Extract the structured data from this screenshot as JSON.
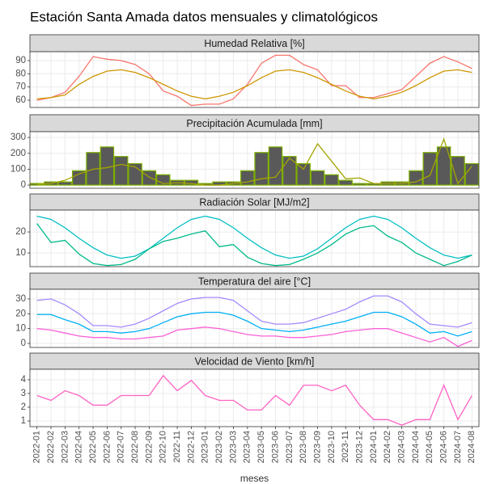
{
  "title": "Estación Santa Amada datos mensuales y climatológicos",
  "chart_data": [
    {
      "type": "line",
      "title": "Humedad Relativa [%]",
      "ylim": [
        54.5,
        96.7
      ],
      "yticks": [
        60,
        70,
        80,
        90
      ],
      "grid": true,
      "series": [
        {
          "color": "#F8766D",
          "values": [
            60,
            62,
            66,
            78,
            93,
            91,
            90,
            87,
            80,
            67,
            63,
            56,
            57,
            57,
            61,
            72,
            88,
            94,
            94,
            87,
            83,
            71,
            71,
            62,
            62,
            65,
            68,
            78,
            88,
            93,
            89,
            84
          ]
        },
        {
          "color": "#CD9600",
          "values": [
            61,
            62,
            64,
            72,
            78,
            82,
            83,
            81,
            77,
            72,
            67,
            63,
            61,
            63,
            66,
            71,
            77,
            82,
            83,
            81,
            77,
            72,
            67,
            63,
            61,
            63,
            66,
            71,
            77,
            82,
            83,
            81
          ]
        }
      ]
    },
    {
      "type": "bar",
      "title": "Precipitación Acumulada [mm]",
      "ylim": [
        -20,
        336
      ],
      "yticks": [
        0,
        100,
        200,
        300
      ],
      "grid": true,
      "series": [
        {
          "type": "bar",
          "color": "#595959",
          "stroke": "#7CAE00",
          "values": [
            10,
            20,
            20,
            90,
            205,
            240,
            180,
            135,
            90,
            65,
            30,
            30,
            10,
            20,
            20,
            90,
            205,
            240,
            180,
            135,
            90,
            65,
            30,
            10,
            10,
            20,
            20,
            90,
            205,
            240,
            180,
            135
          ]
        },
        {
          "type": "line",
          "color": "#A3A500",
          "values": [
            5,
            10,
            30,
            70,
            100,
            110,
            130,
            115,
            50,
            10,
            15,
            10,
            0,
            0,
            10,
            20,
            40,
            50,
            170,
            100,
            260,
            150,
            40,
            45,
            10,
            10,
            10,
            20,
            60,
            290,
            10,
            120
          ]
        }
      ]
    },
    {
      "type": "line",
      "title": "Radiación Solar [MJ/m2]",
      "ylim": [
        3.5,
        30.4
      ],
      "yticks": [
        10,
        20
      ],
      "grid": true,
      "series": [
        {
          "color": "#00BFC4",
          "values": [
            27.5,
            26,
            22,
            17,
            12.5,
            9,
            7.5,
            8.5,
            12,
            17,
            22,
            26,
            27.5,
            26,
            22,
            17,
            12.5,
            9,
            7.5,
            8.5,
            12,
            17,
            22,
            26,
            27.5,
            26,
            22,
            17,
            12.5,
            9,
            7.5,
            9
          ]
        },
        {
          "color": "#00BA8A",
          "values": [
            24,
            15,
            16,
            9.5,
            5,
            4,
            4.5,
            7,
            12,
            15.5,
            17,
            19,
            20.5,
            13,
            14,
            8,
            5,
            4,
            4.5,
            7,
            10,
            14,
            19,
            22,
            23,
            18,
            15,
            10,
            7,
            4,
            6,
            9
          ]
        }
      ]
    },
    {
      "type": "line",
      "title": "Temperatura del aire [°C]",
      "ylim": [
        -2.7,
        36.5
      ],
      "yticks": [
        0,
        10,
        20,
        30
      ],
      "grid": true,
      "series": [
        {
          "color": "#A58AFF",
          "values": [
            29,
            30,
            26,
            20,
            12,
            12,
            11,
            13,
            17,
            22,
            27,
            30,
            31,
            31,
            29,
            22,
            15,
            13,
            13,
            14,
            17,
            20,
            23,
            28,
            32,
            32,
            28,
            20,
            13,
            12,
            11,
            14
          ]
        },
        {
          "color": "#00B0F6",
          "values": [
            19.5,
            19.5,
            16,
            13,
            8,
            8,
            7,
            8,
            10,
            14,
            18,
            20,
            21,
            21,
            19,
            15,
            10,
            9,
            8,
            9,
            11,
            13,
            15,
            18,
            21,
            21,
            18,
            13,
            7,
            8,
            5,
            8
          ]
        },
        {
          "color": "#FB61D7",
          "values": [
            10,
            9,
            7,
            5,
            4,
            4,
            3,
            3,
            4,
            5,
            9,
            10,
            11,
            10,
            8,
            6,
            5,
            5,
            4,
            4,
            5,
            6,
            8,
            9,
            10,
            10,
            7,
            4,
            1,
            4,
            -2,
            2
          ]
        }
      ]
    },
    {
      "type": "line",
      "title": "Velocidad de Viento [km/h]",
      "ylim": [
        0.59,
        4.76
      ],
      "yticks": [
        1,
        2,
        3,
        4
      ],
      "grid": true,
      "x_label": "meses",
      "categories": [
        "2022-01",
        "2022-02",
        "2022-03",
        "2022-04",
        "2022-05",
        "2022-06",
        "2022-07",
        "2022-08",
        "2022-09",
        "2022-10",
        "2022-11",
        "2022-12",
        "2023-01",
        "2023-02",
        "2023-03",
        "2023-04",
        "2023-05",
        "2023-06",
        "2023-07",
        "2023-08",
        "2023-09",
        "2023-10",
        "2023-11",
        "2023-12",
        "2024-01",
        "2024-02",
        "2024-03",
        "2024-04",
        "2024-05",
        "2024-06",
        "2024-07",
        "2024-08"
      ],
      "series": [
        {
          "color": "#FF61C3",
          "values": [
            2.85,
            2.5,
            3.2,
            2.85,
            2.15,
            2.15,
            2.85,
            2.85,
            2.85,
            4.3,
            3.2,
            3.95,
            2.85,
            2.5,
            2.5,
            1.8,
            1.8,
            2.85,
            2.15,
            3.6,
            3.6,
            3.2,
            3.6,
            2.15,
            1.1,
            1.1,
            0.7,
            1.1,
            1.1,
            3.6,
            1.1,
            2.85
          ]
        }
      ]
    }
  ]
}
